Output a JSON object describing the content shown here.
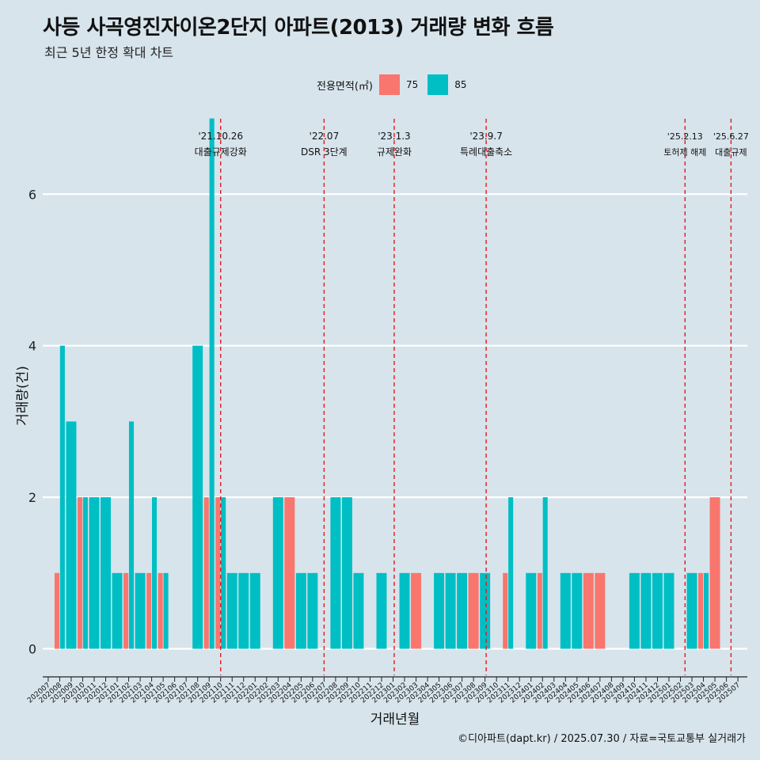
{
  "chart_data": {
    "type": "bar",
    "title": "사등 사곡영진자이온2단지 아파트(2013) 거래량 변화 흐름",
    "subtitle": "최근 5년 한정 확대 차트",
    "xlabel": "거래년월",
    "ylabel": "거래량(건)",
    "ylim": [
      -0.35,
      7.1
    ],
    "yticks": [
      0,
      2,
      4,
      6
    ],
    "legend": {
      "title": "전용면적(㎡)",
      "position": "top",
      "items": [
        {
          "label": "75",
          "color": "#f8766d"
        },
        {
          "label": "85",
          "color": "#00bfc4"
        }
      ]
    },
    "categories": [
      "202007",
      "202008",
      "202009",
      "202010",
      "202011",
      "202012",
      "202101",
      "202102",
      "202103",
      "202104",
      "202105",
      "202106",
      "202107",
      "202108",
      "202109",
      "202110",
      "202111",
      "202112",
      "202201",
      "202202",
      "202203",
      "202204",
      "202205",
      "202206",
      "202207",
      "202208",
      "202209",
      "202210",
      "202211",
      "202212",
      "202301",
      "202302",
      "202303",
      "202304",
      "202305",
      "202306",
      "202307",
      "202308",
      "202309",
      "202310",
      "202311",
      "202312",
      "202401",
      "202402",
      "202403",
      "202404",
      "202405",
      "202406",
      "202407",
      "202408",
      "202409",
      "202410",
      "202411",
      "202412",
      "202501",
      "202502",
      "202503",
      "202504",
      "202505",
      "202506",
      "202507"
    ],
    "bars": [
      {
        "month": "202008",
        "size": "75",
        "value": 1
      },
      {
        "month": "202008",
        "size": "85",
        "value": 4
      },
      {
        "month": "202009",
        "size": "85",
        "value": 3
      },
      {
        "month": "202010",
        "size": "75",
        "value": 2
      },
      {
        "month": "202010",
        "size": "85",
        "value": 2
      },
      {
        "month": "202011",
        "size": "85",
        "value": 2
      },
      {
        "month": "202012",
        "size": "85",
        "value": 2
      },
      {
        "month": "202101",
        "size": "85",
        "value": 1
      },
      {
        "month": "202102",
        "size": "75",
        "value": 1
      },
      {
        "month": "202102",
        "size": "85",
        "value": 3
      },
      {
        "month": "202103",
        "size": "85",
        "value": 1
      },
      {
        "month": "202104",
        "size": "75",
        "value": 1
      },
      {
        "month": "202104",
        "size": "85",
        "value": 2
      },
      {
        "month": "202105",
        "size": "75",
        "value": 1
      },
      {
        "month": "202105",
        "size": "85",
        "value": 1
      },
      {
        "month": "202108",
        "size": "85",
        "value": 4
      },
      {
        "month": "202109",
        "size": "75",
        "value": 2
      },
      {
        "month": "202109",
        "size": "85",
        "value": 7
      },
      {
        "month": "202110",
        "size": "75",
        "value": 2
      },
      {
        "month": "202110",
        "size": "85",
        "value": 2
      },
      {
        "month": "202111",
        "size": "85",
        "value": 1
      },
      {
        "month": "202112",
        "size": "85",
        "value": 1
      },
      {
        "month": "202201",
        "size": "85",
        "value": 1
      },
      {
        "month": "202203",
        "size": "85",
        "value": 2
      },
      {
        "month": "202204",
        "size": "75",
        "value": 2
      },
      {
        "month": "202205",
        "size": "85",
        "value": 1
      },
      {
        "month": "202206",
        "size": "85",
        "value": 1
      },
      {
        "month": "202208",
        "size": "85",
        "value": 2
      },
      {
        "month": "202209",
        "size": "85",
        "value": 2
      },
      {
        "month": "202210",
        "size": "85",
        "value": 1
      },
      {
        "month": "202212",
        "size": "85",
        "value": 1
      },
      {
        "month": "202302",
        "size": "85",
        "value": 1
      },
      {
        "month": "202303",
        "size": "75",
        "value": 1
      },
      {
        "month": "202305",
        "size": "85",
        "value": 1
      },
      {
        "month": "202306",
        "size": "85",
        "value": 1
      },
      {
        "month": "202307",
        "size": "85",
        "value": 1
      },
      {
        "month": "202308",
        "size": "75",
        "value": 1
      },
      {
        "month": "202309",
        "size": "85",
        "value": 1
      },
      {
        "month": "202311",
        "size": "75",
        "value": 1
      },
      {
        "month": "202311",
        "size": "85",
        "value": 2
      },
      {
        "month": "202401",
        "size": "85",
        "value": 1
      },
      {
        "month": "202402",
        "size": "75",
        "value": 1
      },
      {
        "month": "202402",
        "size": "85",
        "value": 2
      },
      {
        "month": "202404",
        "size": "85",
        "value": 1
      },
      {
        "month": "202405",
        "size": "85",
        "value": 1
      },
      {
        "month": "202406",
        "size": "75",
        "value": 1
      },
      {
        "month": "202407",
        "size": "75",
        "value": 1
      },
      {
        "month": "202410",
        "size": "85",
        "value": 1
      },
      {
        "month": "202411",
        "size": "85",
        "value": 1
      },
      {
        "month": "202412",
        "size": "85",
        "value": 1
      },
      {
        "month": "202501",
        "size": "85",
        "value": 1
      },
      {
        "month": "202503",
        "size": "85",
        "value": 1
      },
      {
        "month": "202504",
        "size": "75",
        "value": 1
      },
      {
        "month": "202504",
        "size": "85",
        "value": 1
      },
      {
        "month": "202505",
        "size": "75",
        "value": 2
      }
    ],
    "events": [
      {
        "month_index": 15.0,
        "date": "'21.10.26",
        "label": "대출규제강화"
      },
      {
        "month_index": 24.0,
        "date": "'22.07",
        "label": "DSR 3단계"
      },
      {
        "month_index": 30.1,
        "date": "'23.1.3",
        "label": "규제완화"
      },
      {
        "month_index": 38.1,
        "date": "'23.9.7",
        "label": "특례대출축소"
      },
      {
        "month_index": 55.4,
        "date": "'25.2.13",
        "label": "토허제 해제"
      },
      {
        "month_index": 59.4,
        "date": "'25.6.27",
        "label": "대출규제"
      }
    ]
  },
  "caption": "©디아파트(dapt.kr) / 2025.07.30 / 자료=국토교통부 실거래가",
  "colors": {
    "background": "#d7e4ec",
    "gridline": "#ffffff",
    "event_line": "#e41a1c",
    "axis": "#222222"
  }
}
